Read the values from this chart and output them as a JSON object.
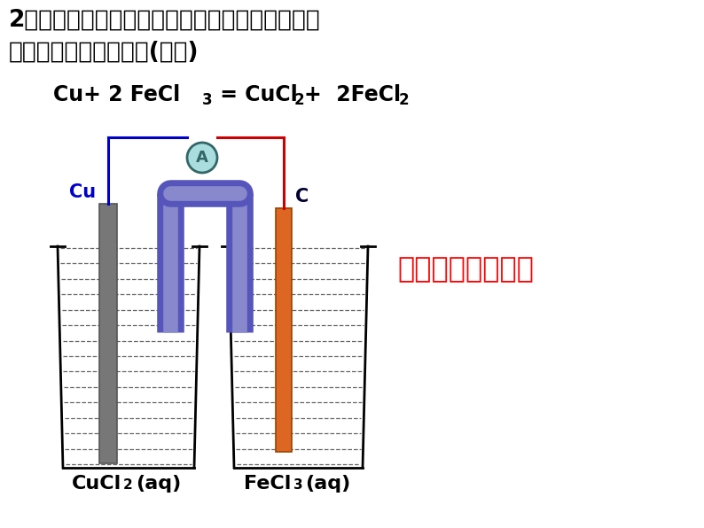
{
  "title_line1": "2、利用下列氧化还原反应设计原电池，写出电极",
  "title_line2": "反应式。并画出装置图(盐桥)",
  "label_cu": "Cu",
  "label_c": "C",
  "label_ammeter": "A",
  "question_text": "能把碳改为铁吗？",
  "bg_color": "#ffffff",
  "title_color": "#000000",
  "equation_color": "#000000",
  "cu_label_color": "#0000cc",
  "c_label_color": "#000033",
  "question_color": "#ff0000",
  "solution_label_color": "#000000",
  "wire_left_color": "#0000cc",
  "wire_right_color": "#cc0000",
  "salt_bridge_color": "#5555bb",
  "salt_bridge_fill": "#8888cc",
  "electrode_left_color": "#777777",
  "electrode_right_color": "#dd6622",
  "beaker_color": "#000000",
  "ammeter_fill": "#aadddd",
  "ammeter_border": "#336666",
  "solution_line_color": "#333333"
}
